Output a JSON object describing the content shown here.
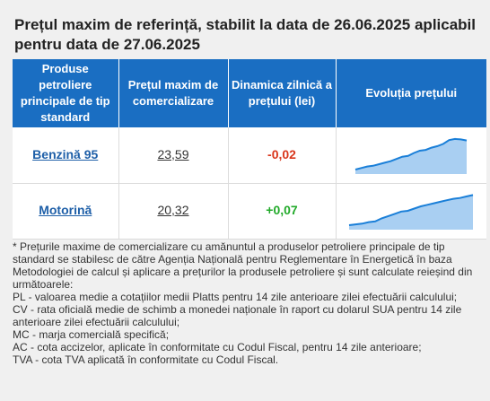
{
  "title": "Prețul maxim de referință, stabilit la data de 26.06.2025 aplicabil pentru data de 27.06.2025",
  "table": {
    "headers": [
      "Produse petroliere principale de tip standard",
      "Prețul maxim de comercializare",
      "Dinamica zilnică a prețului (lei)",
      "Evoluția prețului"
    ],
    "rows": [
      {
        "product": "Benzină 95",
        "price": "23,59",
        "change": "-0,02",
        "trend": [
          0.12,
          0.16,
          0.2,
          0.22,
          0.26,
          0.3,
          0.34,
          0.4,
          0.46,
          0.48,
          0.56,
          0.62,
          0.64,
          0.7,
          0.74,
          0.8,
          0.9,
          0.93,
          0.92,
          0.89
        ]
      },
      {
        "product": "Motorină",
        "price": "20,32",
        "change": "+0,07",
        "trend": [
          0.12,
          0.14,
          0.16,
          0.2,
          0.22,
          0.3,
          0.36,
          0.42,
          0.48,
          0.5,
          0.56,
          0.62,
          0.66,
          0.7,
          0.74,
          0.78,
          0.82,
          0.84,
          0.88,
          0.92
        ]
      }
    ]
  },
  "colors": {
    "header_bg": "#1a6ec2",
    "sparkline_line": "#1a7fd8",
    "sparkline_fill": "#a9cff2",
    "negative": "#d9361c",
    "positive": "#22aa2a"
  },
  "footnote": [
    "* Prețurile maxime de comercializare cu amănuntul a produselor petroliere principale de tip standard se stabilesc de către Agenția Națională pentru Reglementare în Energetică în baza Metodologiei de calcul și aplicare a prețurilor la produsele petroliere și sunt calculate reieșind din următoarele:",
    "PL - valoarea medie a cotațiilor medii Platts pentru 14 zile anterioare zilei efectuării calculului;",
    "CV - rata oficială medie de schimb a monedei naționale în raport cu dolarul SUA pentru 14 zile anterioare zilei efectuării calculului;",
    "MC - marja comercială specifică;",
    "AC - cota accizelor, aplicate în conformitate cu Codul Fiscal, pentru 14 zile anterioare;",
    "TVA - cota TVA aplicată în conformitate cu Codul Fiscal."
  ]
}
